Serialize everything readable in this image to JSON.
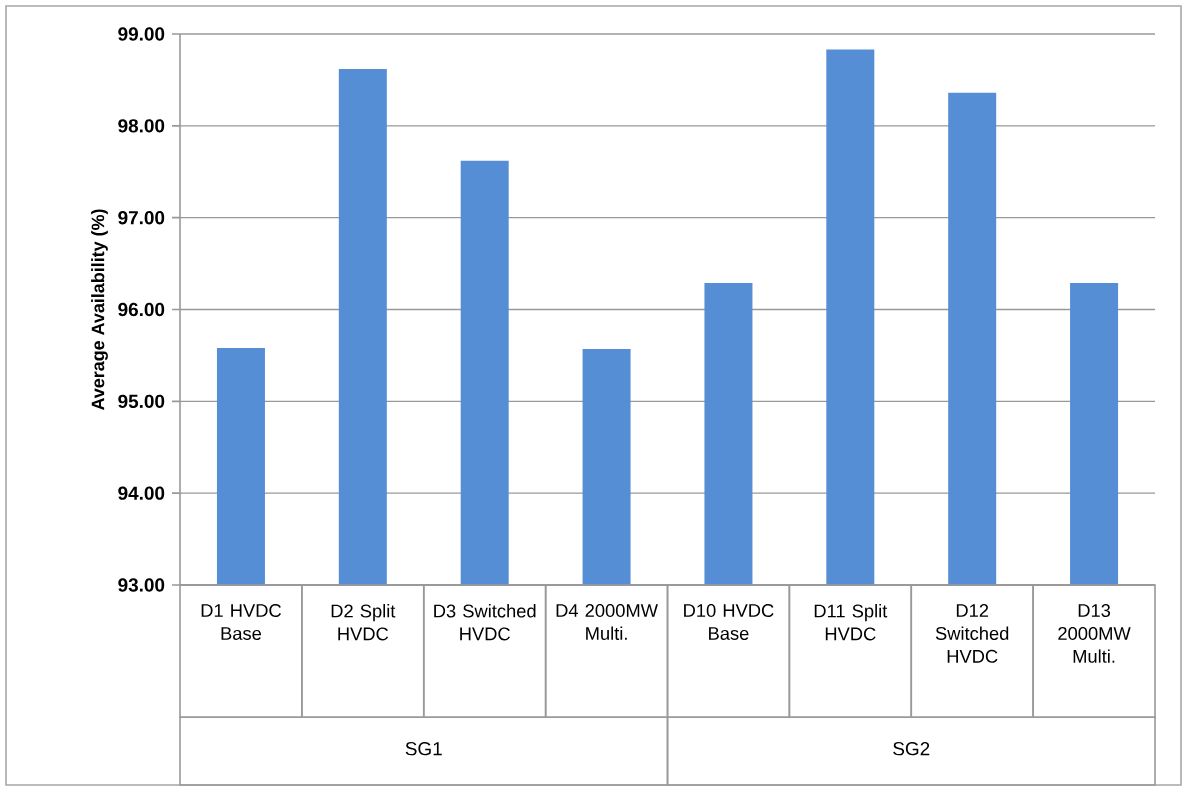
{
  "chart_data": {
    "type": "bar",
    "ylabel": "Average Availability (%)",
    "categories": [
      "D1  HVDC Base",
      "D2 Split HVDC",
      "D3 Switched HVDC",
      "D4 2000MW Multi.",
      "D10 HVDC Base",
      "D11 Split HVDC",
      "D12 Switched HVDC",
      "D13 2000MW Multi."
    ],
    "values": [
      95.58,
      98.62,
      97.62,
      95.57,
      96.29,
      98.83,
      98.36,
      96.29
    ],
    "color": "#558ed5",
    "ylim": [
      93,
      99
    ],
    "yticks": [
      {
        "value": 93,
        "label": "93.00"
      },
      {
        "value": 94,
        "label": "94.00"
      },
      {
        "value": 95,
        "label": "95.00"
      },
      {
        "value": 96,
        "label": "96.00"
      },
      {
        "value": 97,
        "label": "97.00"
      },
      {
        "value": 98,
        "label": "98.00"
      },
      {
        "value": 99,
        "label": "99.00"
      }
    ],
    "grid": "y",
    "annotations": [
      "SG1",
      "SG2"
    ]
  }
}
